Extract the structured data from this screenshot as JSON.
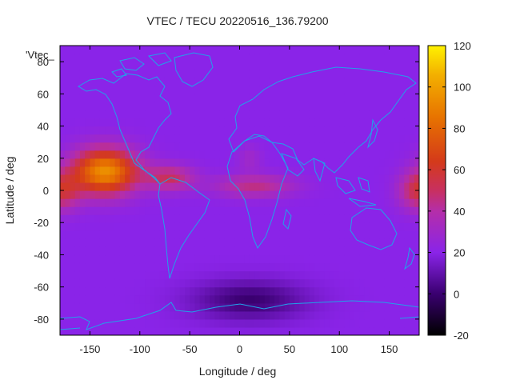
{
  "chart_data": {
    "type": "heatmap",
    "title": "VTEC / TECU 20220516_136.79200",
    "xlabel": "Longitude / deg",
    "ylabel": "Latitude / deg",
    "series_key": "'Vtec_",
    "xlim": [
      -180,
      180
    ],
    "ylim": [
      -90,
      90
    ],
    "xticks": [
      -150,
      -100,
      -50,
      0,
      50,
      100,
      150
    ],
    "yticks": [
      -80,
      -60,
      -40,
      -20,
      0,
      20,
      40,
      60,
      80
    ],
    "colorbar": {
      "range": [
        -20,
        120
      ],
      "ticks": [
        -20,
        0,
        20,
        40,
        60,
        80,
        100,
        120
      ]
    },
    "grid_step_deg": 5,
    "background_tec": 20,
    "hotspots": [
      {
        "lon": -135,
        "lat": 12,
        "peak": 75,
        "sx": 32,
        "sy": 14
      },
      {
        "lon": -70,
        "lat": 8,
        "peak": 30,
        "sx": 25,
        "sy": 8
      },
      {
        "lon": 15,
        "lat": 3,
        "peak": 25,
        "sx": 40,
        "sy": 7
      },
      {
        "lon": 10,
        "lat": 20,
        "peak": 10,
        "sx": 12,
        "sy": 8
      },
      {
        "lon": 180,
        "lat": 0,
        "peak": 35,
        "sx": 20,
        "sy": 12
      }
    ],
    "troughs": [
      {
        "lon": 10,
        "lat": -68,
        "depth": 20,
        "sx": 55,
        "sy": 12
      }
    ]
  },
  "colors": {
    "coastline": "#1fa3e8",
    "border": "#000000"
  }
}
